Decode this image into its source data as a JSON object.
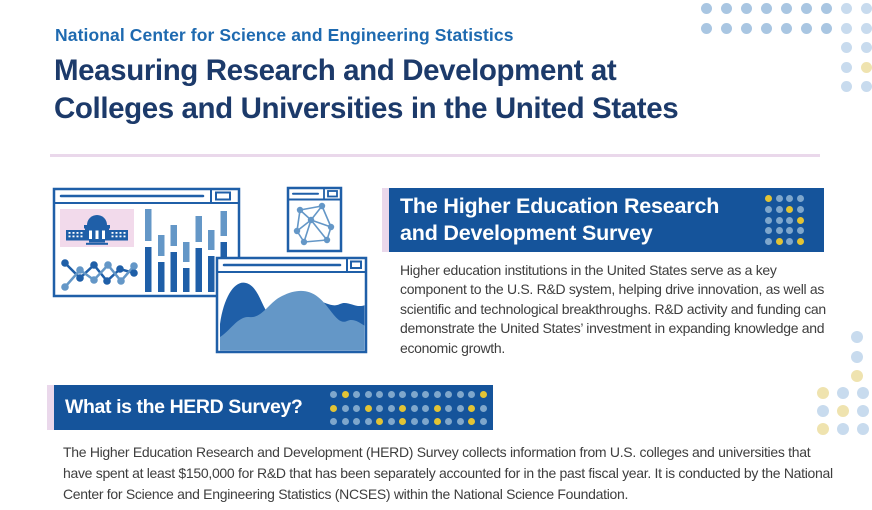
{
  "header": {
    "eyebrow": "National Center for Science and Engineering Statistics",
    "title_line1": "Measuring Research and Development at",
    "title_line2": "Colleges and Universities in the United States"
  },
  "survey_section": {
    "heading_line1": "The Higher Education Research",
    "heading_line2": "and Development Survey",
    "body": "Higher education institutions in the United States serve as a key component to the U.S. R&D system, helping drive innovation, as well as scientific and technological breakthroughs. R&D activity and funding can demonstrate the United States’ investment in expanding knowledge and economic growth."
  },
  "herd_section": {
    "heading": "What is the HERD Survey?",
    "body": "The Higher Education Research and Development (HERD) Survey collects information from U.S. colleges and universities that have spent at least $150,000 for R&D that has been separately accounted for in the past fiscal year. It is conducted by the National Center for Science and Engineering Statistics (NCSES) within the National Science Foundation."
  },
  "illustration": {
    "description": "Overlapping browser windows showing a university building, line chart, bar chart, network diagram and area chart",
    "icons": [
      "university-building-icon",
      "line-chart-icon",
      "bar-chart-icon",
      "network-diagram-icon",
      "area-chart-icon"
    ]
  },
  "colors": {
    "eyebrow_blue": "#1E6AB0",
    "heading_navy": "#1C3A6A",
    "panel_blue": "#15549B",
    "accent_yellow": "#E2C335",
    "dot_blue_on_panel": "#7FA7CC",
    "deco_blue_medium": "#A9C6E2",
    "deco_blue_pale": "#C8DBEE",
    "deco_yellow_pale": "#EFE3AF",
    "pink_accent": "#EAD8EB",
    "body_text": "#3E3E3E",
    "illus_dark_blue": "#1F5FA8",
    "illus_light_blue": "#6497C7",
    "illus_pink": "#F2DAEB"
  },
  "decorations": {
    "top_right_grid": [
      "mmmmmmmpp",
      "mmmmmmmpp",
      ".......pp",
      ".......py",
      ".......pp"
    ],
    "survey_panel_grid": [
      "ybbb",
      "bbyb",
      "bbby",
      "bbbb",
      "byby"
    ],
    "herd_banner_grid": [
      "bybbbbbbbbbbby",
      "ybbybbybbybbyb",
      "bbbbybybbybbyb"
    ],
    "bottom_right_column": [
      "p",
      "p",
      "y"
    ],
    "bottom_right_grid": [
      "ypp",
      "pyp",
      "ypp"
    ]
  }
}
